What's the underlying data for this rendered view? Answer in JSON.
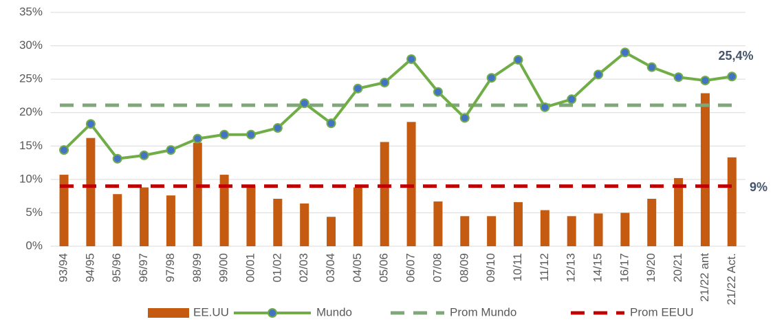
{
  "chart_data": {
    "type": "bar_line",
    "categories": [
      "93/94",
      "94/95",
      "95/96",
      "96/97",
      "97/98",
      "98/99",
      "99/00",
      "00/01",
      "01/02",
      "02/03",
      "03/04",
      "04/05",
      "05/06",
      "06/07",
      "07/08",
      "08/09",
      "09/10",
      "10/11",
      "11/12",
      "12/13",
      "14/15",
      "16/17",
      "19/20",
      "20/21",
      "21/22 ant",
      "21/22 Act."
    ],
    "series": [
      {
        "name": "EE.UU",
        "type": "bar",
        "color": "#c55a11",
        "values": [
          10.7,
          16.2,
          7.8,
          8.8,
          7.6,
          15.5,
          10.7,
          9.1,
          7.1,
          6.4,
          4.4,
          8.8,
          15.6,
          18.6,
          6.7,
          4.5,
          4.5,
          6.6,
          5.4,
          4.5,
          4.9,
          5.0,
          7.1,
          10.2,
          22.9,
          13.3
        ]
      },
      {
        "name": "Mundo",
        "type": "line",
        "color": "#70ad47",
        "marker_color": "#4472c4",
        "values": [
          14.4,
          18.3,
          13.1,
          13.6,
          14.4,
          16.1,
          16.7,
          16.7,
          17.7,
          21.4,
          18.4,
          23.6,
          24.5,
          28.0,
          23.1,
          19.2,
          25.2,
          27.9,
          20.8,
          22.0,
          25.7,
          29.0,
          26.8,
          25.3,
          24.8,
          25.4
        ]
      },
      {
        "name": "Prom Mundo",
        "type": "hline",
        "color": "#7fa77a",
        "value": 21.1
      },
      {
        "name": "Prom EEUU",
        "type": "hline",
        "color": "#c00000",
        "value": 9
      }
    ],
    "annotations": [
      "25,4%",
      "9%"
    ],
    "ylim": [
      0,
      35
    ],
    "yticks": [
      {
        "value": 0,
        "label": "0%"
      },
      {
        "value": 5,
        "label": "5%"
      },
      {
        "value": 10,
        "label": "10%"
      },
      {
        "value": 15,
        "label": "15%"
      },
      {
        "value": 20,
        "label": "20%"
      },
      {
        "value": 25,
        "label": "25%"
      },
      {
        "value": 30,
        "label": "30%"
      },
      {
        "value": 35,
        "label": "35%"
      }
    ],
    "grid": true
  }
}
